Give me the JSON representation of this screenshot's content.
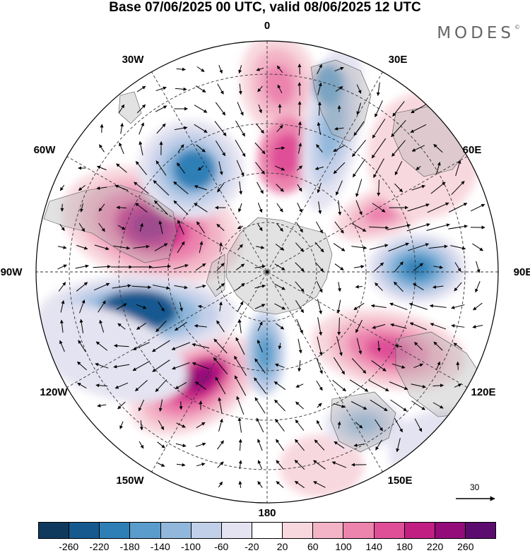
{
  "header": {
    "title": "Base 07/06/2025 00 UTC, valid 08/06/2025 12 UTC",
    "brand": "MODES",
    "brand_mark": "©"
  },
  "map": {
    "projection": "south-polar-stereographic",
    "longitude_labels": [
      "0",
      "30E",
      "60E",
      "90E",
      "120E",
      "150E",
      "180",
      "150W",
      "120W",
      "90W",
      "60W",
      "30W"
    ],
    "fill_field": "geopotential height anomaly",
    "positive_color": "#d6317f",
    "negative_color": "#2c72b0",
    "continent_color": "#b3b3b3",
    "grid_style": "dashed"
  },
  "vector_scale": {
    "label": "30"
  },
  "colorbar": {
    "colors": [
      "#0f3a5e",
      "#16598f",
      "#2e7fb6",
      "#5a9ccb",
      "#91b8dc",
      "#c2cfe8",
      "#e4e3f1",
      "#ffffff",
      "#f8d8df",
      "#f3b4c7",
      "#ec84ae",
      "#df4f97",
      "#c21f83",
      "#930c79",
      "#5c0c6f"
    ],
    "tick_labels": [
      "-260",
      "-220",
      "-180",
      "-140",
      "-100",
      "-60",
      "-20",
      "20",
      "60",
      "100",
      "140",
      "180",
      "220",
      "260"
    ]
  }
}
